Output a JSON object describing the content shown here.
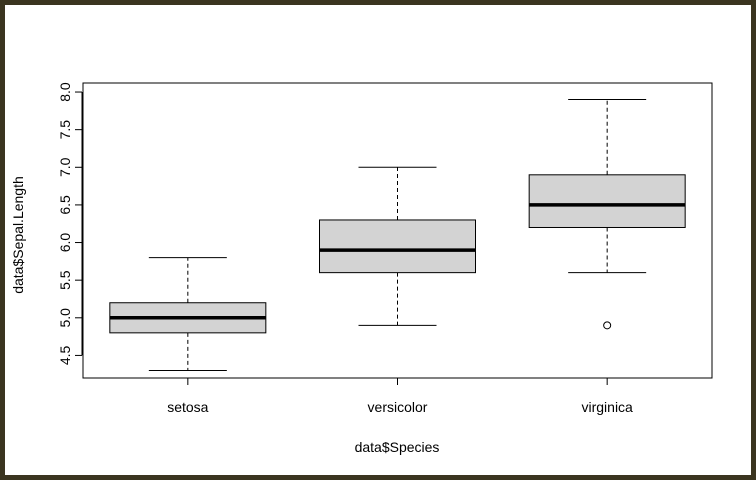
{
  "chart_data": {
    "type": "boxplot",
    "xlabel": "data$Species",
    "ylabel": "data$Sepal.Length",
    "ylim": [
      4.2,
      8.12
    ],
    "yticks": [
      "4.5",
      "5.0",
      "5.5",
      "6.0",
      "6.5",
      "7.0",
      "7.5",
      "8.0"
    ],
    "categories": [
      "setosa",
      "versicolor",
      "virginica"
    ],
    "boxes": [
      {
        "category": "setosa",
        "whisker_low": 4.3,
        "q1": 4.8,
        "median": 5.0,
        "q3": 5.2,
        "whisker_high": 5.8,
        "outliers": []
      },
      {
        "category": "versicolor",
        "whisker_low": 4.9,
        "q1": 5.6,
        "median": 5.9,
        "q3": 6.3,
        "whisker_high": 7.0,
        "outliers": []
      },
      {
        "category": "virginica",
        "whisker_low": 5.6,
        "q1": 6.2,
        "median": 6.5,
        "q3": 6.9,
        "whisker_high": 7.9,
        "outliers": [
          4.9
        ]
      }
    ],
    "box_fill": "#d3d3d3",
    "grid": false,
    "legend": "none"
  }
}
